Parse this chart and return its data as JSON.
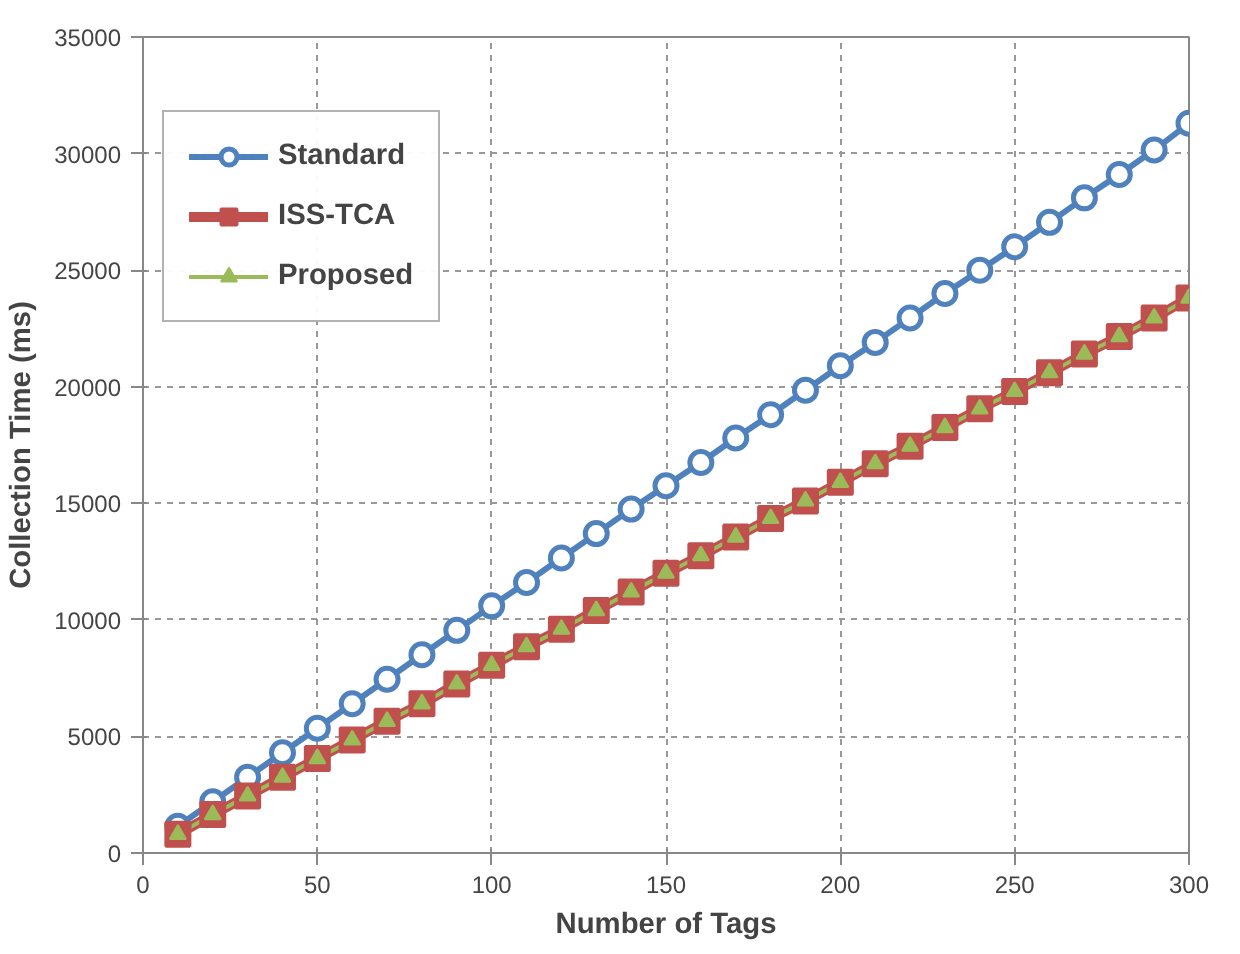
{
  "chart_data": {
    "type": "line",
    "xlabel": "Number of Tags",
    "ylabel": "Collection Time (ms)",
    "x": [
      10,
      20,
      30,
      40,
      50,
      60,
      70,
      80,
      90,
      100,
      110,
      120,
      130,
      140,
      150,
      160,
      170,
      180,
      190,
      200,
      210,
      220,
      230,
      240,
      250,
      260,
      270,
      280,
      290,
      300
    ],
    "series": [
      {
        "name": "Standard",
        "color": "#4f81bd",
        "marker": "circle",
        "values": [
          1150,
          2200,
          3250,
          4300,
          5350,
          6400,
          7450,
          8500,
          9550,
          10600,
          11600,
          12650,
          13700,
          14750,
          15750,
          16750,
          17800,
          18800,
          19850,
          20900,
          21900,
          22950,
          24000,
          25000,
          26000,
          27050,
          28100,
          29100,
          30150,
          31300
        ]
      },
      {
        "name": "ISS-TCA",
        "color": "#c0504d",
        "marker": "square",
        "values": [
          800,
          1650,
          2450,
          3250,
          4050,
          4850,
          5650,
          6400,
          7250,
          8050,
          8850,
          9600,
          10400,
          11200,
          12000,
          12750,
          13550,
          14350,
          15100,
          15900,
          16700,
          17450,
          18250,
          19050,
          19800,
          20600,
          21400,
          22150,
          22950,
          23800
        ]
      },
      {
        "name": "Proposed",
        "color": "#9bbb59",
        "marker": "triangle",
        "values": [
          800,
          1650,
          2450,
          3250,
          4050,
          4850,
          5650,
          6400,
          7250,
          8050,
          8850,
          9600,
          10400,
          11200,
          12000,
          12750,
          13550,
          14350,
          15100,
          15900,
          16700,
          17450,
          18250,
          19050,
          19800,
          20600,
          21400,
          22150,
          22950,
          23800
        ]
      }
    ],
    "xlim": [
      0,
      300
    ],
    "xticks": [
      0,
      50,
      100,
      150,
      200,
      250,
      300
    ],
    "ylim": [
      0,
      35000
    ],
    "yticks": [
      0,
      5000,
      10000,
      15000,
      20000,
      25000,
      30000,
      35000
    ],
    "grid": true,
    "legend": "top left",
    "line_style": "solid"
  }
}
